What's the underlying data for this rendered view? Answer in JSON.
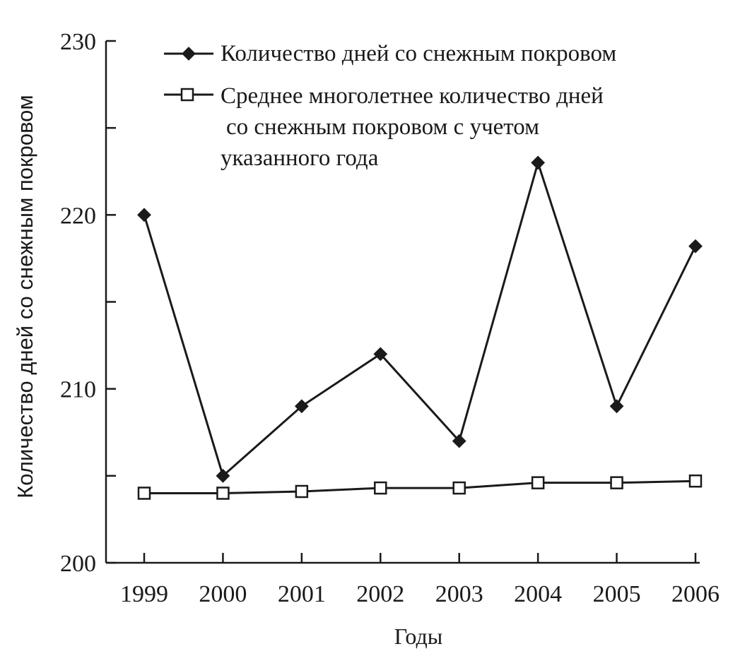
{
  "chart_data": {
    "type": "line",
    "x": [
      "1999",
      "2000",
      "2001",
      "2002",
      "2003",
      "2004",
      "2005",
      "2006"
    ],
    "xlabel": "Годы",
    "ylabel": "Количество дней со снежным покровом",
    "ylim": [
      200,
      230
    ],
    "yticks": [
      "200",
      "210",
      "220",
      "230"
    ],
    "grid": false,
    "legend_position": "top",
    "series": [
      {
        "name": "Количество дней со снежным покровом",
        "marker": "filled-diamond",
        "color": "#1a1a1a",
        "values": [
          220,
          205,
          209,
          212,
          207,
          223,
          209,
          218.2
        ]
      },
      {
        "name_lines": [
          "Среднее многолетнее количество дней",
          "со снежным покровом с учетом",
          "указанного года"
        ],
        "marker": "open-square",
        "color": "#1a1a1a",
        "values": [
          204,
          204,
          204.1,
          204.3,
          204.3,
          204.6,
          204.6,
          204.7
        ]
      }
    ]
  }
}
